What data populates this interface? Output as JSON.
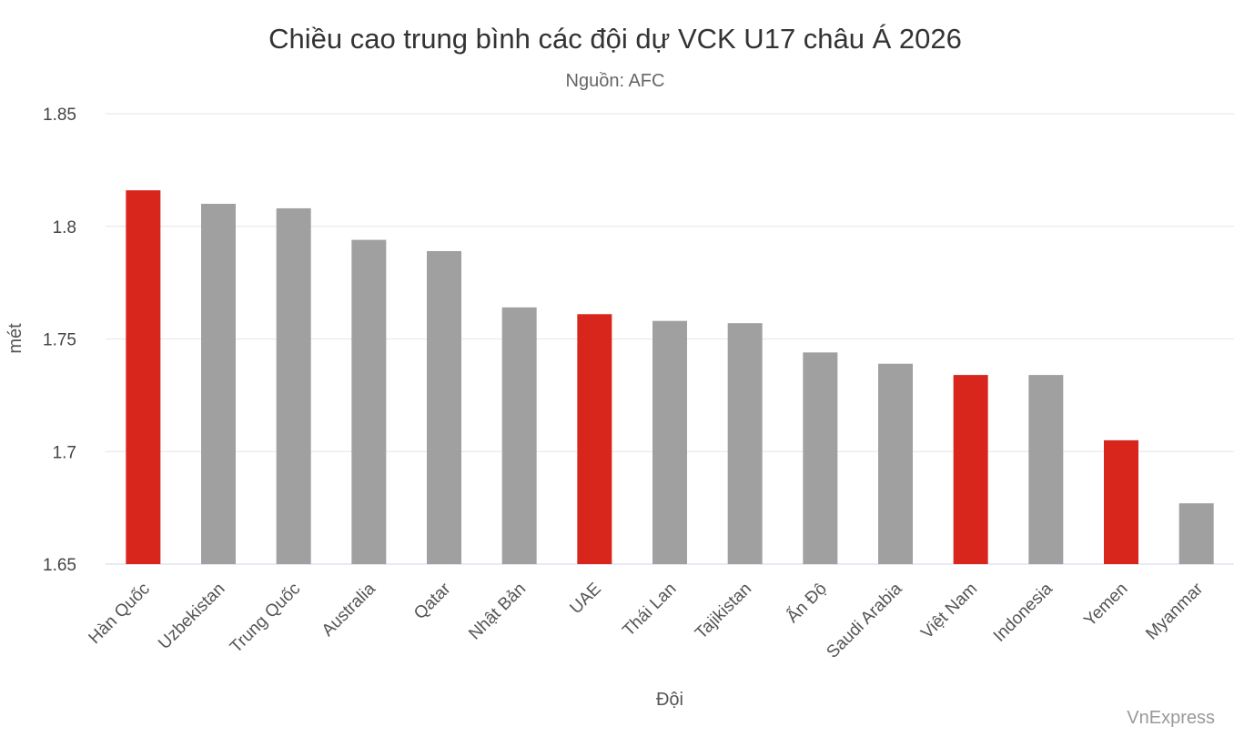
{
  "colors": {
    "highlight": "#d9261c",
    "default": "#a0a0a0"
  },
  "credit": "VnExpress",
  "chart_data": {
    "type": "bar",
    "title": "Chiều cao trung bình các đội dự VCK U17 châu Á 2026",
    "subtitle": "Nguồn: AFC",
    "xlabel": "Đội",
    "ylabel": "mét",
    "ylim": [
      1.65,
      1.85
    ],
    "yticks": [
      "1.65",
      "1.7",
      "1.75",
      "1.8",
      "1.85"
    ],
    "grid": true,
    "legend": "none",
    "categories": [
      "Hàn Quốc",
      "Uzbekistan",
      "Trung Quốc",
      "Australia",
      "Qatar",
      "Nhật Bản",
      "UAE",
      "Thái Lan",
      "Tajikistan",
      "Ấn Độ",
      "Saudi Arabia",
      "Việt Nam",
      "Indonesia",
      "Yemen",
      "Myanmar"
    ],
    "values": [
      1.816,
      1.81,
      1.808,
      1.794,
      1.789,
      1.764,
      1.761,
      1.758,
      1.757,
      1.744,
      1.739,
      1.734,
      1.734,
      1.705,
      1.677
    ],
    "highlighted": [
      "Hàn Quốc",
      "UAE",
      "Việt Nam",
      "Yemen"
    ]
  }
}
